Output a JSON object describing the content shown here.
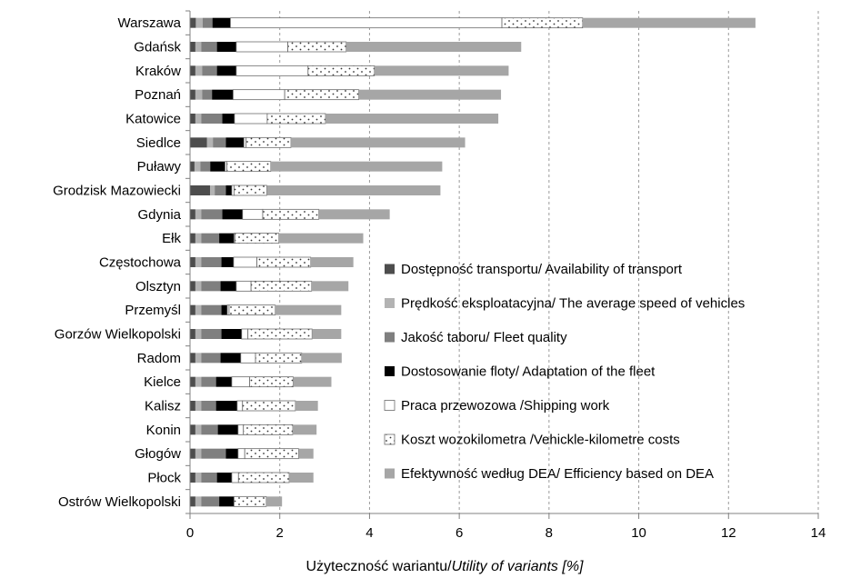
{
  "chart_data": {
    "type": "bar",
    "orientation": "horizontal",
    "stacked": true,
    "categories": [
      "Warszawa",
      "Gdańsk",
      "Kraków",
      "Poznań",
      "Katowice",
      "Siedlce",
      "Puławy",
      "Grodzisk Mazowiecki",
      "Gdynia",
      "Ełk",
      "Częstochowa",
      "Olsztyn",
      "Przemyśl",
      "Gorzów Wielkopolski",
      "Radom",
      "Kielce",
      "Kalisz",
      "Konin",
      "Głogów",
      "Płock",
      "Ostrów Wielkopolski"
    ],
    "series": [
      {
        "name": "Dostępność transportu/ Availability of transport",
        "color": "#4d4d4d",
        "pattern": "solid",
        "values": [
          0.13,
          0.12,
          0.12,
          0.12,
          0.12,
          0.38,
          0.1,
          0.45,
          0.12,
          0.12,
          0.12,
          0.12,
          0.12,
          0.12,
          0.12,
          0.12,
          0.12,
          0.12,
          0.12,
          0.12,
          0.12
        ]
      },
      {
        "name": "Prędkość eksploatacyjna/ The average speed of vehicles",
        "color": "#b3b3b3",
        "pattern": "solid",
        "values": [
          0.15,
          0.13,
          0.15,
          0.15,
          0.13,
          0.13,
          0.13,
          0.1,
          0.13,
          0.13,
          0.13,
          0.13,
          0.13,
          0.13,
          0.13,
          0.13,
          0.13,
          0.13,
          0.13,
          0.13,
          0.13
        ]
      },
      {
        "name": "Jakość taboru/ Fleet quality",
        "color": "#7f7f7f",
        "pattern": "solid",
        "values": [
          0.22,
          0.35,
          0.33,
          0.22,
          0.47,
          0.29,
          0.22,
          0.25,
          0.47,
          0.4,
          0.45,
          0.43,
          0.45,
          0.45,
          0.43,
          0.33,
          0.33,
          0.37,
          0.55,
          0.35,
          0.4
        ]
      },
      {
        "name": "Dostosowanie floty/ Adaptation of the fleet",
        "color": "#000000",
        "pattern": "solid",
        "values": [
          0.4,
          0.43,
          0.43,
          0.47,
          0.27,
          0.4,
          0.33,
          0.13,
          0.45,
          0.33,
          0.27,
          0.35,
          0.13,
          0.45,
          0.45,
          0.35,
          0.47,
          0.45,
          0.27,
          0.33,
          0.33
        ]
      },
      {
        "name": "Praca przewozowa /Shipping work",
        "color": "#ffffff",
        "pattern": "solid",
        "values": [
          6.05,
          1.15,
          1.6,
          1.15,
          0.73,
          0.05,
          0.04,
          0.05,
          0.45,
          0.02,
          0.52,
          0.33,
          0.04,
          0.14,
          0.33,
          0.4,
          0.12,
          0.12,
          0.15,
          0.15,
          0.0
        ]
      },
      {
        "name": "Koszt wozokilometra /Vehickle-kilometre costs",
        "color": "#ffffff",
        "pattern": "dots",
        "values": [
          1.8,
          1.3,
          1.48,
          1.65,
          1.3,
          1.0,
          0.98,
          0.73,
          1.25,
          0.98,
          1.2,
          1.35,
          1.03,
          1.43,
          1.03,
          0.97,
          1.18,
          1.1,
          1.2,
          1.13,
          0.72
        ]
      },
      {
        "name": "Efektywność według DEA/ Efficiency based on DEA",
        "color": "#a6a6a6",
        "pattern": "solid",
        "values": [
          3.85,
          3.9,
          2.99,
          3.17,
          3.85,
          3.88,
          3.82,
          3.87,
          1.58,
          1.88,
          0.95,
          0.82,
          1.47,
          0.65,
          0.89,
          0.85,
          0.5,
          0.53,
          0.33,
          0.54,
          0.35
        ]
      }
    ],
    "xlabel": "Użyteczność wariantu/",
    "xlabel_italic": "Utility of variants [%]",
    "xlim": [
      0,
      14
    ],
    "xticks": [
      0,
      2,
      4,
      6,
      8,
      10,
      12,
      14
    ],
    "grid": "vertical dashed",
    "legend_placement": "inside lower-right"
  }
}
